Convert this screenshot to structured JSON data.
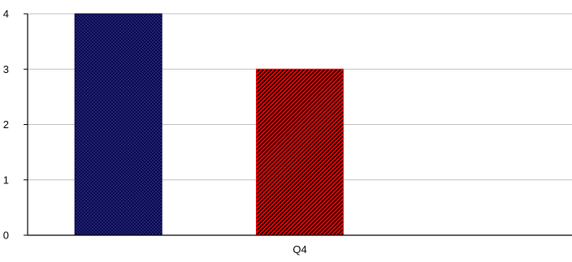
{
  "chart_data": {
    "type": "bar",
    "categories": [
      "",
      "Q4",
      ""
    ],
    "values": [
      4,
      3,
      null
    ],
    "bar_colors": [
      "#000044",
      "#ff0000",
      null
    ],
    "bar_patterns": [
      "crosshatch-dark",
      "diagonal-hatch",
      null
    ],
    "y_ticks": [
      "0",
      "1",
      "2",
      "3",
      "4"
    ],
    "ylim": [
      0,
      4
    ],
    "grid": true,
    "title": "",
    "xlabel": "",
    "ylabel": ""
  }
}
